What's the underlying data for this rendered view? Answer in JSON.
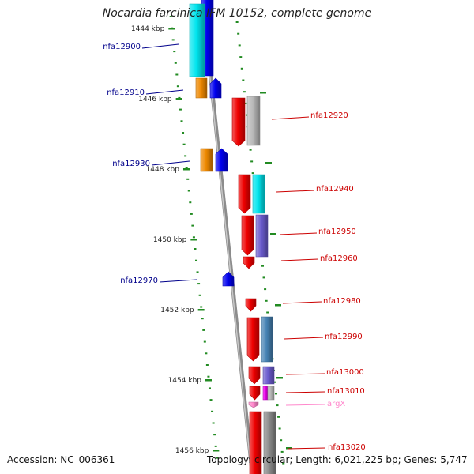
{
  "header": {
    "title": "Nocardia farcinica IFM 10152, complete genome"
  },
  "footer": {
    "accession": "Accession: NC_006361",
    "topology": "Topology: circular; Length: 6,021,225 bp; Genes: 5,747"
  },
  "scale_labels": [
    "1444 kbp",
    "1446 kbp",
    "1448 kbp",
    "1450 kbp",
    "1452 kbp",
    "1454 kbp",
    "1456 kbp"
  ],
  "colors": {
    "blue": "#0000ee",
    "cyan": "#00e5ee",
    "orange": "#ee8800",
    "red": "#ee0000",
    "gray": "#b8b8b8",
    "slate_blue": "#6a5acd",
    "steel_blue": "#4682b4",
    "magenta": "#ee00ee",
    "pink": "#ff88cc",
    "dark_gray": "#8a8a8a",
    "label_blue": "#00008b",
    "label_red": "#cc0000",
    "label_pink": "#ff88cc",
    "tick_green": "#228b22",
    "backbone": "#8c8c8c"
  },
  "genes": [
    {
      "label": "nfa12900",
      "side": "left",
      "color": "label_blue"
    },
    {
      "label": "nfa12910",
      "side": "left",
      "color": "label_blue"
    },
    {
      "label": "nfa12920",
      "side": "right",
      "color": "label_red"
    },
    {
      "label": "nfa12930",
      "side": "left",
      "color": "label_blue"
    },
    {
      "label": "nfa12940",
      "side": "right",
      "color": "label_red"
    },
    {
      "label": "nfa12950",
      "side": "right",
      "color": "label_red"
    },
    {
      "label": "nfa12960",
      "side": "right",
      "color": "label_red"
    },
    {
      "label": "nfa12970",
      "side": "left",
      "color": "label_blue"
    },
    {
      "label": "nfa12980",
      "side": "right",
      "color": "label_red"
    },
    {
      "label": "nfa12990",
      "side": "right",
      "color": "label_red"
    },
    {
      "label": "nfa13000",
      "side": "right",
      "color": "label_red"
    },
    {
      "label": "nfa13010",
      "side": "right",
      "color": "label_red"
    },
    {
      "label": "argX",
      "side": "right",
      "color": "label_pink"
    },
    {
      "label": "nfa13020",
      "side": "right",
      "color": "label_red"
    }
  ]
}
